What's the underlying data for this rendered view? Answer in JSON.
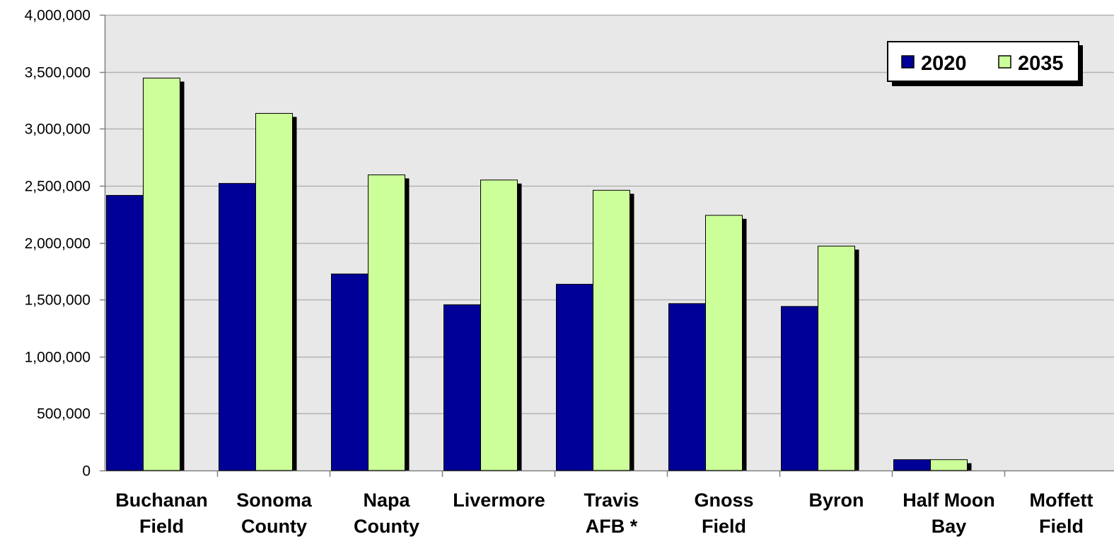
{
  "chart_data": {
    "type": "bar",
    "title": "",
    "xlabel": "",
    "ylabel": "",
    "categories": [
      [
        "Buchanan",
        "Field"
      ],
      [
        "Sonoma",
        "County"
      ],
      [
        "Napa",
        "County"
      ],
      [
        "Livermore"
      ],
      [
        "Travis",
        "AFB *"
      ],
      [
        "Gnoss",
        "Field"
      ],
      [
        "Byron"
      ],
      [
        "Half Moon",
        "Bay"
      ],
      [
        "Moffett",
        "Field"
      ]
    ],
    "series": [
      {
        "name": "2020",
        "color": "#000099",
        "values": [
          2415000,
          2520000,
          1725000,
          1455000,
          1635000,
          1465000,
          1440000,
          95000,
          0
        ]
      },
      {
        "name": "2035",
        "color": "#CCFF99",
        "values": [
          3445000,
          3135000,
          2595000,
          2550000,
          2460000,
          2240000,
          1970000,
          95000,
          0
        ]
      }
    ],
    "ylim": [
      0,
      4000000
    ],
    "yticks": [
      0,
      500000,
      1000000,
      1500000,
      2000000,
      2500000,
      3000000,
      3500000,
      4000000
    ],
    "ytick_labels": [
      "0",
      "500,000",
      "1,000,000",
      "1,500,000",
      "2,000,000",
      "2,500,000",
      "3,000,000",
      "3,500,000",
      "4,000,000"
    ],
    "grid": true,
    "legend_position": "top-right",
    "plot_background": "#E8E8E8"
  }
}
